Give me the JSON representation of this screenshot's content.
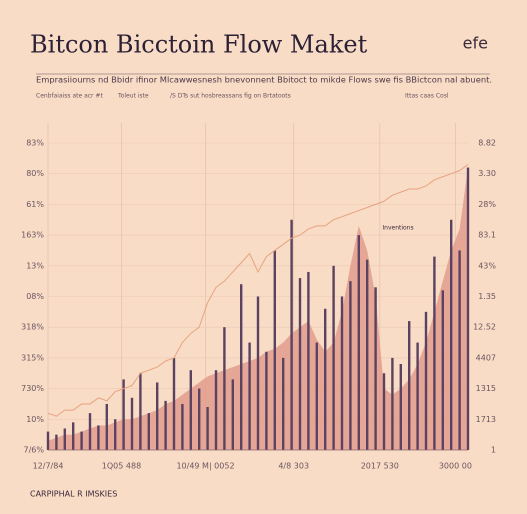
{
  "chart_data": {
    "type": "combo",
    "title": "Bitcon Bicctoin Flow Maket",
    "logo": "efe",
    "subtitle": "Emprasiiourns nd Bbidr ifinor Mlcawwesnesh bnevonnent Bbitoct to mikde Flows swe fis BBictcon nal abuent.",
    "notes": [
      "Cenbfaiaiss ate acr #t",
      "Toleut iste",
      "/S DTs sut hosbreassans fig on Brtatoots",
      "Ittas caas Cosl"
    ],
    "annotation": "Inventions",
    "footer": "CARPIPHAL R IMSKIES",
    "grid": true,
    "xlim": [
      0,
      100
    ],
    "xticks": [
      {
        "value": 0,
        "label": "12/7/84"
      },
      {
        "value": 17.5,
        "label": "1Q05 488"
      },
      {
        "value": 37.5,
        "label": "10/49 M| 0052"
      },
      {
        "value": 58.5,
        "label": "4/8 303"
      },
      {
        "value": 79,
        "label": "2017 530"
      },
      {
        "value": 97,
        "label": "3000 00"
      }
    ],
    "ylim": [
      0,
      10
    ],
    "yticks": [
      {
        "value": 0,
        "label": "7/6%"
      },
      {
        "value": 1,
        "label": "10%"
      },
      {
        "value": 2,
        "label": "730%"
      },
      {
        "value": 3,
        "label": "315%"
      },
      {
        "value": 4,
        "label": "318%"
      },
      {
        "value": 5,
        "label": "08%"
      },
      {
        "value": 6,
        "label": "13%"
      },
      {
        "value": 7,
        "label": "163%"
      },
      {
        "value": 8,
        "label": "61%"
      },
      {
        "value": 9,
        "label": "80%"
      },
      {
        "value": 10,
        "label": "83%"
      }
    ],
    "y2lim": [
      0,
      10
    ],
    "y2ticks": [
      {
        "value": 0,
        "label": "1"
      },
      {
        "value": 1,
        "label": "1713"
      },
      {
        "value": 2,
        "label": "1315"
      },
      {
        "value": 3,
        "label": "4407"
      },
      {
        "value": 4,
        "label": "12.52"
      },
      {
        "value": 5,
        "label": "1.35"
      },
      {
        "value": 6,
        "label": "43%"
      },
      {
        "value": 7,
        "label": "83.1"
      },
      {
        "value": 8,
        "label": "28%"
      },
      {
        "value": 9,
        "label": "3.30"
      },
      {
        "value": 10,
        "label": "8.82"
      }
    ],
    "x": [
      0,
      2,
      4,
      6,
      8,
      10,
      12,
      14,
      16,
      18,
      20,
      22,
      24,
      26,
      28,
      30,
      32,
      34,
      36,
      38,
      40,
      42,
      44,
      46,
      48,
      50,
      52,
      54,
      56,
      58,
      60,
      62,
      64,
      66,
      68,
      70,
      72,
      74,
      76,
      78,
      80,
      82,
      84,
      86,
      88,
      90,
      92,
      94,
      96,
      98,
      100
    ],
    "series": [
      {
        "type": "area",
        "color": "#e39c8c",
        "values": [
          0.3,
          0.4,
          0.5,
          0.5,
          0.6,
          0.7,
          0.8,
          0.8,
          0.9,
          1.0,
          1.0,
          1.1,
          1.2,
          1.3,
          1.5,
          1.6,
          1.8,
          2.0,
          2.2,
          2.4,
          2.5,
          2.6,
          2.7,
          2.8,
          2.9,
          3.0,
          3.2,
          3.3,
          3.5,
          3.8,
          4.0,
          4.2,
          3.6,
          3.2,
          3.5,
          4.5,
          6.0,
          7.3,
          6.5,
          5.0,
          2.0,
          1.8,
          2.0,
          2.3,
          2.8,
          3.5,
          4.5,
          5.5,
          6.5,
          7.2,
          9.2
        ]
      },
      {
        "type": "bar",
        "color": "#5a4260",
        "values": [
          0.6,
          0.5,
          0.7,
          0.9,
          0.6,
          1.2,
          0.8,
          1.5,
          1.0,
          2.3,
          1.7,
          2.5,
          1.2,
          2.2,
          1.6,
          3.0,
          1.5,
          2.6,
          2.0,
          1.4,
          2.6,
          4.0,
          2.3,
          5.4,
          3.5,
          5.0,
          3.2,
          6.5,
          3.0,
          7.5,
          5.6,
          5.8,
          3.5,
          4.6,
          6.0,
          5.0,
          5.5,
          7.0,
          6.2,
          5.3,
          2.5,
          3.0,
          2.8,
          4.2,
          3.5,
          4.5,
          6.3,
          5.2,
          7.5,
          6.5,
          9.2
        ]
      },
      {
        "type": "line",
        "color": "#e8a27e",
        "values": [
          1.2,
          1.1,
          1.3,
          1.3,
          1.5,
          1.5,
          1.7,
          1.6,
          1.9,
          2.0,
          2.1,
          2.5,
          2.6,
          2.7,
          2.9,
          3.0,
          3.5,
          3.8,
          4.0,
          4.8,
          5.3,
          5.5,
          5.8,
          6.1,
          6.4,
          5.8,
          6.3,
          6.5,
          6.7,
          6.9,
          7.0,
          7.2,
          7.3,
          7.3,
          7.5,
          7.6,
          7.7,
          7.8,
          7.9,
          8.0,
          8.1,
          8.3,
          8.4,
          8.5,
          8.5,
          8.6,
          8.8,
          8.9,
          9.0,
          9.1,
          9.3
        ]
      }
    ]
  }
}
